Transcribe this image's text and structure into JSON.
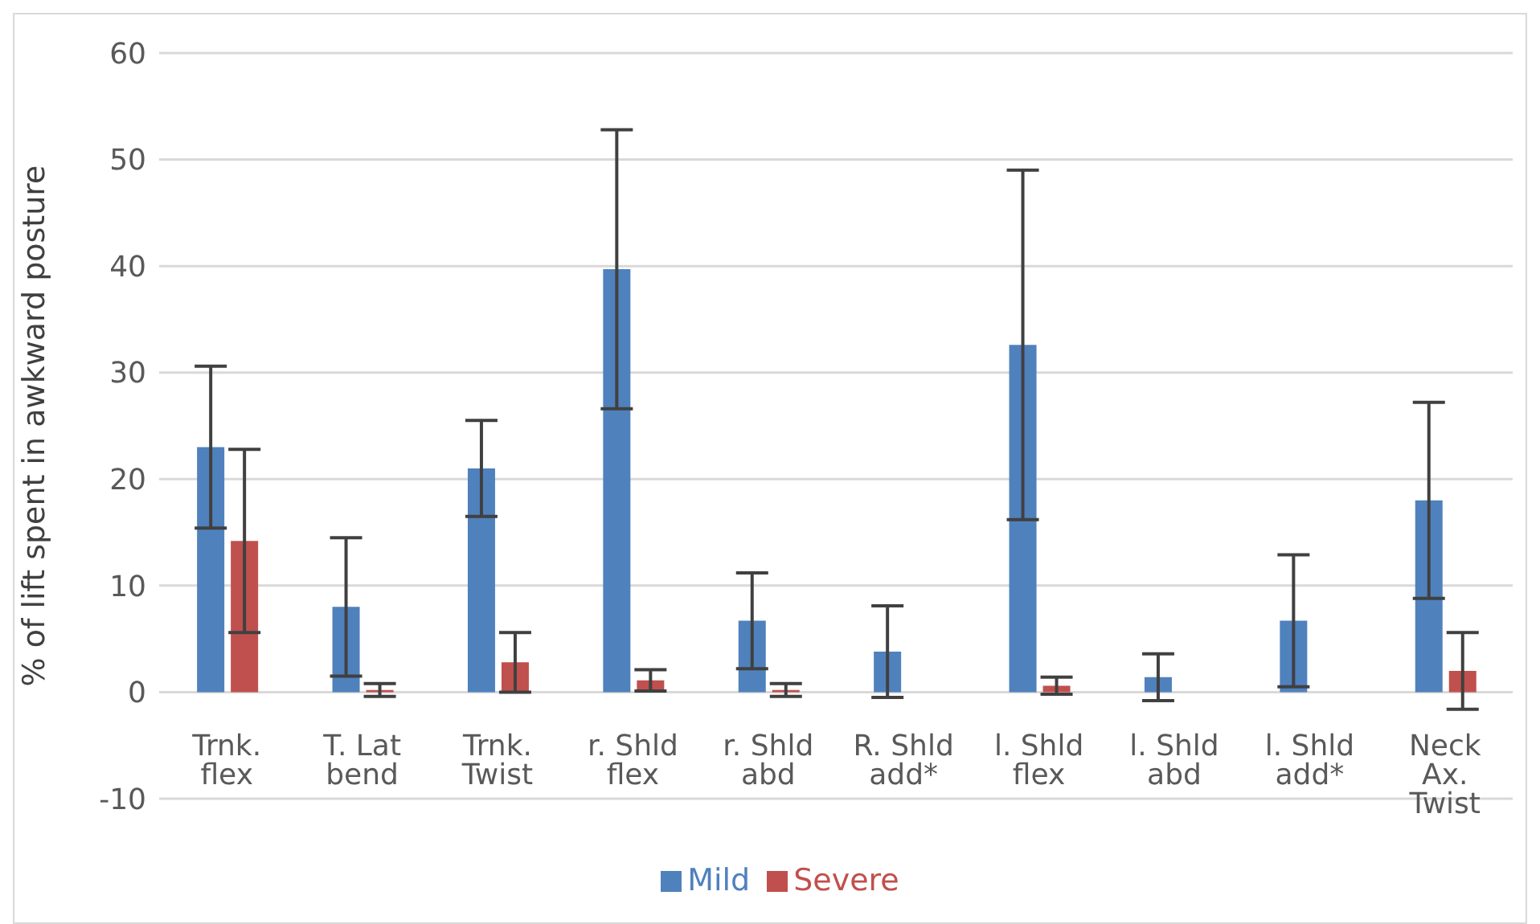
{
  "chart_data": {
    "type": "bar",
    "ylabel": "% of lift spent in awkward posture",
    "categories": [
      "Trnk. flex",
      "T. Lat bend",
      "Trnk. Twist",
      "r. Shld flex",
      "r. Shld abd",
      "R. Shld add*",
      "l. Shld flex",
      "l. Shld abd",
      "l. Shld add*",
      "Neck Ax. Twist"
    ],
    "series": [
      {
        "name": "Mild",
        "color": "#4f81bd",
        "values": [
          23.0,
          8.0,
          21.0,
          39.7,
          6.7,
          3.8,
          32.6,
          1.4,
          6.7,
          18.0
        ],
        "errors": [
          7.6,
          6.5,
          4.5,
          13.1,
          4.5,
          4.3,
          16.4,
          2.2,
          6.2,
          9.2
        ]
      },
      {
        "name": "Severe",
        "color": "#c0504d",
        "values": [
          14.2,
          0.2,
          2.8,
          1.1,
          0.2,
          0,
          0.6,
          0,
          0,
          2.0
        ],
        "errors": [
          8.6,
          0.6,
          2.8,
          1.0,
          0.6,
          null,
          0.8,
          null,
          null,
          3.6
        ]
      }
    ],
    "ylim": [
      -10,
      60
    ],
    "yticks": [
      -10,
      0,
      10,
      20,
      30,
      40,
      50,
      60
    ],
    "grid": "y",
    "legend": "bottom"
  }
}
